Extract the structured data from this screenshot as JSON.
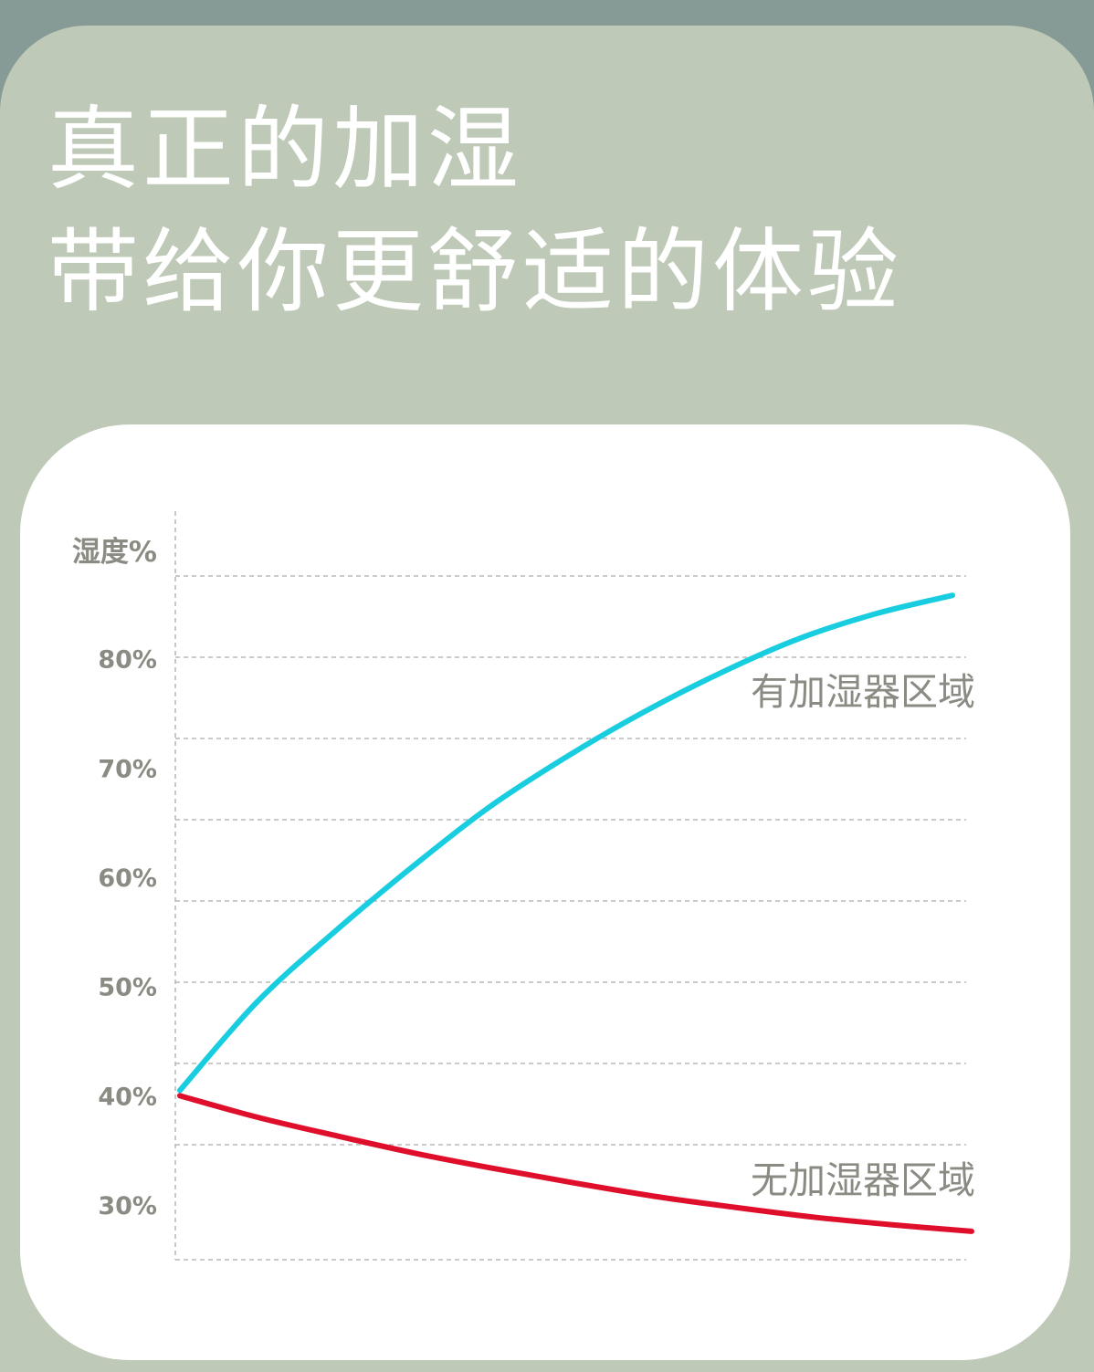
{
  "header": {
    "title_line1": "真正的加湿",
    "title_line2": "带给你更舒适的体验"
  },
  "colors": {
    "top_bar": "#869a96",
    "background": "#bfc9b7",
    "card": "#ffffff",
    "title_text": "#ffffff",
    "axis_text": "#8a8b83",
    "grid": "#b9b9b9"
  },
  "chart_data": {
    "type": "line",
    "title": "",
    "xlabel": "",
    "ylabel": "湿度%",
    "ylim": [
      25,
      93.5
    ],
    "grid": true,
    "legend_placement": "right",
    "y_ticks": [
      {
        "label": "80%",
        "value": 80
      },
      {
        "label": "70%",
        "value": 70
      },
      {
        "label": "60%",
        "value": 60
      },
      {
        "label": "50%",
        "value": 50
      },
      {
        "label": "40%",
        "value": 40
      },
      {
        "label": "30%",
        "value": 30
      }
    ],
    "series": [
      {
        "name": "有加湿器区域",
        "color": "#18cde0",
        "values": [
          40.5,
          48.6,
          55.0,
          60.9,
          66.4,
          71.0,
          75.1,
          78.7,
          81.8,
          84.1,
          85.8
        ]
      },
      {
        "name": "无加湿器区域",
        "color": "#df0f2b",
        "values": [
          40.0,
          38.0,
          36.3,
          34.7,
          33.3,
          32.0,
          30.8,
          29.8,
          28.9,
          28.2,
          27.6
        ]
      }
    ]
  }
}
